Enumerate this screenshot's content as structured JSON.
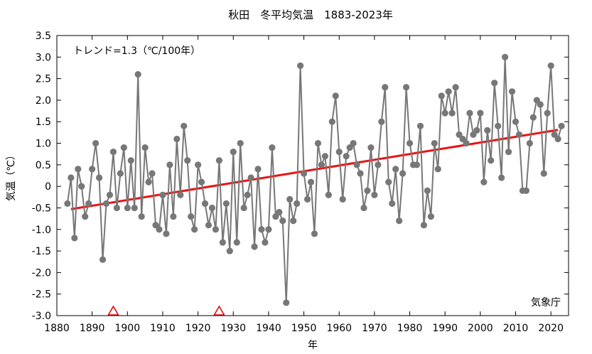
{
  "chart_data": {
    "type": "line",
    "title": "秋田　冬平均気温　1883-2023年",
    "xlabel": "年",
    "ylabel": "気温（℃）",
    "trend_label": "トレンド=1.3（℃/100年）",
    "credit": "気象庁",
    "xlim": [
      1880,
      2025
    ],
    "ylim": [
      -3.0,
      3.5
    ],
    "x_ticks": [
      1880,
      1890,
      1900,
      1910,
      1920,
      1930,
      1940,
      1950,
      1960,
      1970,
      1980,
      1990,
      2000,
      2010,
      2020
    ],
    "y_ticks": [
      "-3.0",
      "-2.5",
      "-2.0",
      "-1.5",
      "-1.0",
      "-0.5",
      "0",
      "0.5",
      "1.0",
      "1.5",
      "2.0",
      "2.5",
      "3.0",
      "3.5"
    ],
    "x": [
      1883,
      1884,
      1885,
      1886,
      1887,
      1888,
      1889,
      1890,
      1891,
      1892,
      1893,
      1894,
      1895,
      1896,
      1897,
      1898,
      1899,
      1900,
      1901,
      1902,
      1903,
      1904,
      1905,
      1906,
      1907,
      1908,
      1909,
      1910,
      1911,
      1912,
      1913,
      1914,
      1915,
      1916,
      1917,
      1918,
      1919,
      1920,
      1921,
      1922,
      1923,
      1924,
      1925,
      1926,
      1927,
      1928,
      1929,
      1930,
      1931,
      1932,
      1933,
      1934,
      1935,
      1936,
      1937,
      1938,
      1939,
      1940,
      1941,
      1942,
      1943,
      1944,
      1945,
      1946,
      1947,
      1948,
      1949,
      1950,
      1951,
      1952,
      1953,
      1954,
      1955,
      1956,
      1957,
      1958,
      1959,
      1960,
      1961,
      1962,
      1963,
      1964,
      1965,
      1966,
      1967,
      1968,
      1969,
      1970,
      1971,
      1972,
      1973,
      1974,
      1975,
      1976,
      1977,
      1978,
      1979,
      1980,
      1981,
      1982,
      1983,
      1984,
      1985,
      1986,
      1987,
      1988,
      1989,
      1990,
      1991,
      1992,
      1993,
      1994,
      1995,
      1996,
      1997,
      1998,
      1999,
      2000,
      2001,
      2002,
      2003,
      2004,
      2005,
      2006,
      2007,
      2008,
      2009,
      2010,
      2011,
      2012,
      2013,
      2014,
      2015,
      2016,
      2017,
      2018,
      2019,
      2020,
      2021,
      2022,
      2023
    ],
    "series": [
      {
        "values": [
          -0.4,
          0.2,
          -1.2,
          0.4,
          0.0,
          -0.7,
          -0.4,
          0.4,
          1.0,
          0.2,
          -1.7,
          -0.4,
          -0.2,
          0.8,
          -0.5,
          0.3,
          0.9,
          -0.5,
          0.6,
          -0.5,
          2.6,
          -0.7,
          0.9,
          0.1,
          0.3,
          -0.9,
          -1.0,
          -0.2,
          -1.1,
          0.5,
          -0.7,
          1.1,
          -0.2,
          1.4,
          0.6,
          -0.7,
          -1.0,
          0.5,
          0.1,
          -0.4,
          -0.9,
          -0.5,
          -1.0,
          0.6,
          -1.3,
          -0.4,
          -1.5,
          0.8,
          -1.3,
          1.0,
          -0.5,
          -0.2,
          0.2,
          -1.4,
          0.4,
          -1.0,
          -1.3,
          -1.0,
          0.9,
          -0.7,
          -0.6,
          -0.8,
          -2.7,
          -0.3,
          -0.8,
          -0.4,
          2.8,
          0.3,
          -0.3,
          0.1,
          -1.1,
          1.0,
          0.5,
          0.7,
          -0.2,
          1.5,
          2.1,
          0.8,
          -0.3,
          0.7,
          0.9,
          1.0,
          0.5,
          0.3,
          -0.5,
          -0.1,
          0.9,
          -0.2,
          0.5,
          1.5,
          2.3,
          0.1,
          -0.4,
          0.4,
          -0.8,
          0.3,
          2.3,
          1.0,
          0.5,
          0.5,
          1.4,
          -0.9,
          -0.1,
          -0.7,
          1.0,
          0.4,
          2.1,
          1.7,
          2.2,
          1.7,
          2.3,
          1.2,
          1.1,
          1.0,
          1.7,
          1.2,
          1.3,
          1.7,
          0.1,
          1.3,
          0.6,
          2.4,
          1.4,
          0.2,
          3.0,
          0.8,
          2.2,
          1.5,
          1.2,
          -0.1,
          -0.1,
          1.0,
          1.6,
          2.0,
          1.9,
          0.3,
          1.7,
          2.8,
          1.2,
          1.1,
          1.4
        ]
      }
    ],
    "trend": {
      "x": [
        1884,
        2022
      ],
      "y": [
        -0.53,
        1.31
      ]
    },
    "markers": [
      {
        "x": 1896,
        "y": -3.0
      },
      {
        "x": 1926,
        "y": -3.0
      }
    ],
    "colors": {
      "series": "#777777",
      "trend": "#ee1111",
      "marker": "#dd0000"
    },
    "grid": false
  }
}
